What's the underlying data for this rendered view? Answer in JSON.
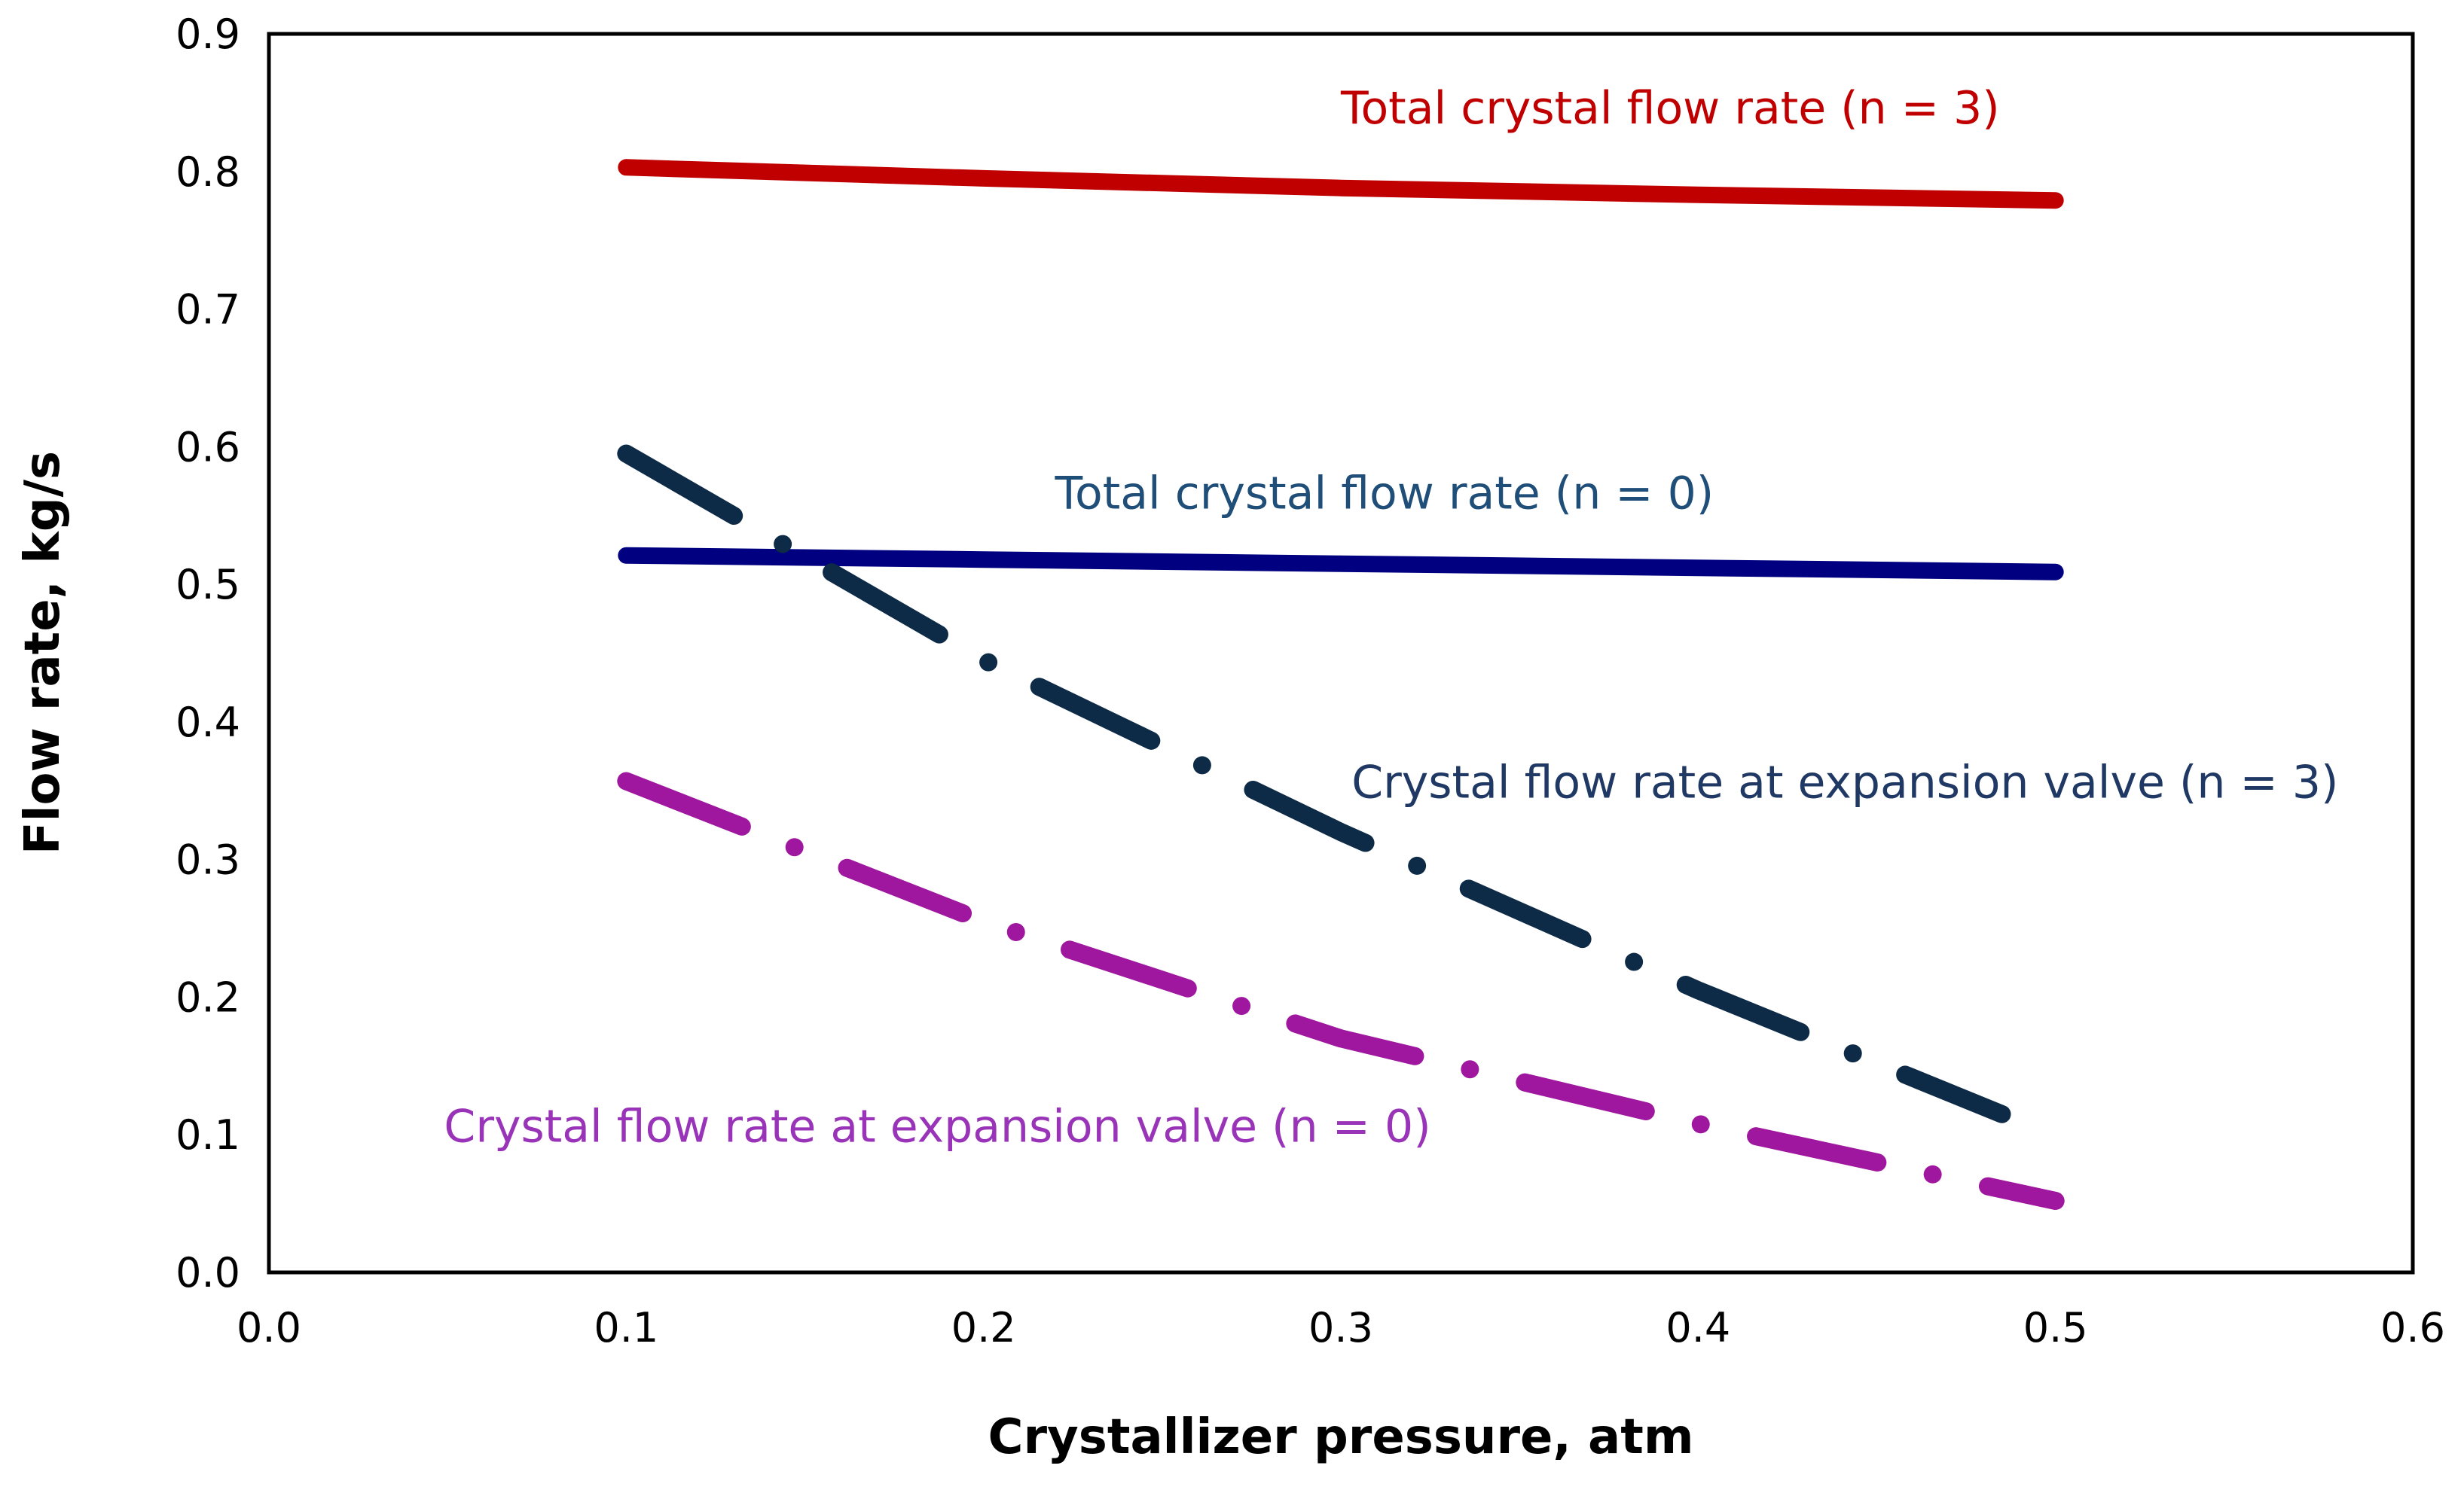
{
  "chart_data": {
    "type": "line",
    "title": "",
    "xlabel": "Crystallizer pressure, atm",
    "ylabel": "Flow rate, kg/s",
    "xlim": [
      0.0,
      0.6
    ],
    "ylim": [
      0.0,
      0.9
    ],
    "grid": false,
    "legend": "none (series labeled by inline annotations)",
    "x_ticks": [
      "0.0",
      "0.1",
      "0.2",
      "0.3",
      "0.4",
      "0.5",
      "0.6"
    ],
    "y_ticks": [
      "0.0",
      "0.1",
      "0.2",
      "0.3",
      "0.4",
      "0.5",
      "0.6",
      "0.7",
      "0.8",
      "0.9"
    ],
    "series": [
      {
        "name": "Total crystal flow rate (n = 3)",
        "style": "solid",
        "color": "#C00000",
        "x": [
          0.1,
          0.2,
          0.3,
          0.4,
          0.5
        ],
        "y": [
          0.803,
          0.795,
          0.788,
          0.783,
          0.779
        ]
      },
      {
        "name": "Total crystal flow rate (n = 0)",
        "style": "solid",
        "color": "#000080",
        "x": [
          0.1,
          0.2,
          0.3,
          0.4,
          0.5
        ],
        "y": [
          0.521,
          0.518,
          0.515,
          0.512,
          0.509
        ]
      },
      {
        "name": "Crystal flow rate at expansion valve (n = 3)",
        "style": "dash-dot",
        "color": "#0D2A47",
        "x": [
          0.1,
          0.2,
          0.3,
          0.4,
          0.485
        ],
        "y": [
          0.595,
          0.445,
          0.32,
          0.205,
          0.115
        ]
      },
      {
        "name": "Crystal flow rate at expansion valve (n = 0)",
        "style": "dash-dot",
        "color": "#A0179F",
        "x": [
          0.1,
          0.2,
          0.3,
          0.4,
          0.5
        ],
        "y": [
          0.357,
          0.255,
          0.17,
          0.108,
          0.052
        ]
      }
    ],
    "annotations": [
      {
        "text": "Total crystal flow rate (n = 3)",
        "color": "#C00000",
        "x": 0.3,
        "y": 0.835
      },
      {
        "text": "Total crystal flow rate (n = 0)",
        "color": "#1F4E79",
        "x": 0.22,
        "y": 0.555
      },
      {
        "text": "Crystal flow rate at expansion valve (n = 3)",
        "color": "#1F3864",
        "x": 0.303,
        "y": 0.345
      },
      {
        "text": "Crystal flow rate at expansion valve (n = 0)",
        "color": "#9933B8",
        "x": 0.049,
        "y": 0.095
      }
    ]
  }
}
